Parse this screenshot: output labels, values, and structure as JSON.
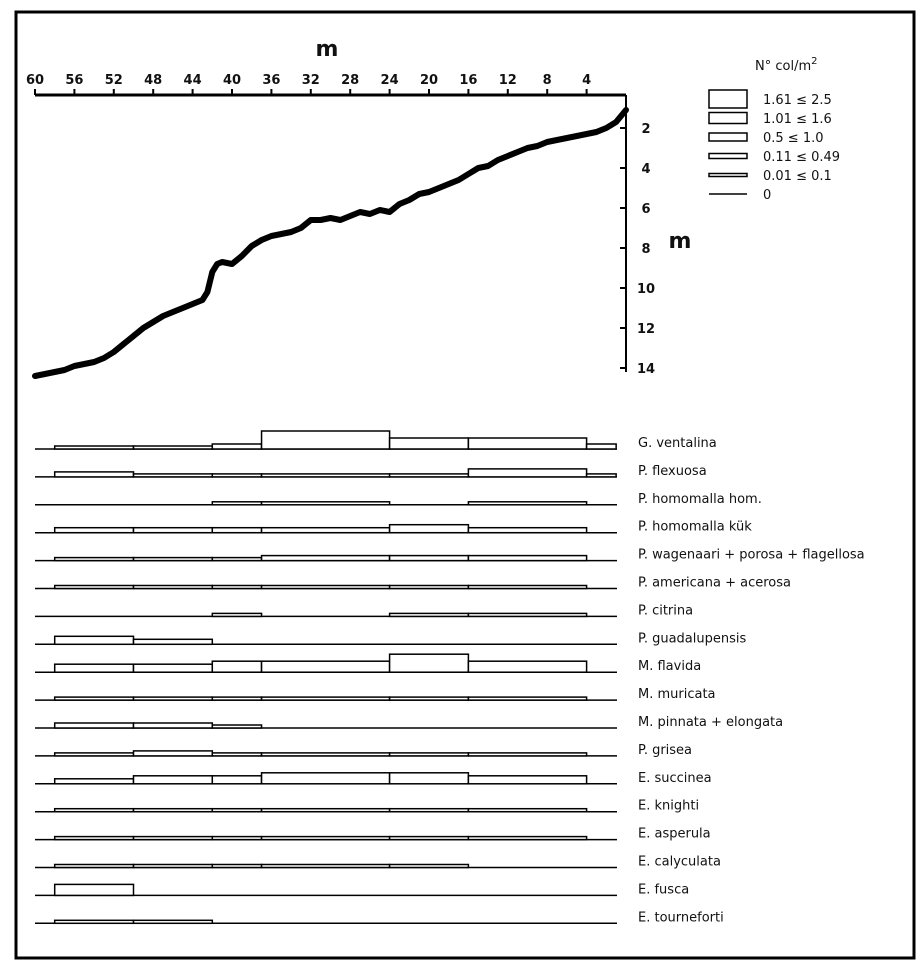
{
  "chart_data": [
    {
      "type": "line",
      "title": "",
      "xlabel": "m",
      "ylabel": "m",
      "xlim": [
        60,
        0
      ],
      "ylim": [
        0,
        14
      ],
      "x_ticks": [
        60,
        56,
        52,
        48,
        44,
        40,
        36,
        32,
        28,
        24,
        20,
        16,
        12,
        8,
        4
      ],
      "y_ticks": [
        2,
        4,
        6,
        8,
        10,
        12,
        14
      ],
      "series": [
        {
          "x": [
            60,
            59,
            58,
            57,
            56,
            55,
            54,
            53,
            52,
            51,
            50,
            49,
            48,
            47,
            46,
            45,
            44,
            43,
            42.5,
            42,
            41.5,
            41,
            40,
            39,
            38,
            37,
            36,
            35,
            34,
            33,
            32,
            31,
            30,
            29,
            28,
            27,
            26,
            25,
            24,
            23,
            22,
            21,
            20,
            19,
            18,
            17,
            16,
            15,
            14,
            13,
            12,
            11,
            10,
            9,
            8,
            7,
            6,
            5,
            4,
            3,
            2,
            1,
            0
          ],
          "y": [
            14.4,
            14.3,
            14.2,
            14.1,
            13.9,
            13.8,
            13.7,
            13.5,
            13.2,
            12.8,
            12.4,
            12.0,
            11.7,
            11.4,
            11.2,
            11.0,
            10.8,
            10.6,
            10.2,
            9.2,
            8.8,
            8.7,
            8.8,
            8.4,
            7.9,
            7.6,
            7.4,
            7.3,
            7.2,
            7.0,
            6.6,
            6.6,
            6.5,
            6.6,
            6.4,
            6.2,
            6.3,
            6.1,
            6.2,
            5.8,
            5.6,
            5.3,
            5.2,
            5.0,
            4.8,
            4.6,
            4.3,
            4.0,
            3.9,
            3.6,
            3.4,
            3.2,
            3.0,
            2.9,
            2.7,
            2.6,
            2.5,
            2.4,
            2.3,
            2.2,
            2.0,
            1.7,
            1.1
          ]
        }
      ]
    },
    {
      "type": "bar",
      "title": "",
      "legend_title": "N° col/m",
      "legend_title_sup": "2",
      "legend_placement": "top-right",
      "legend": [
        {
          "label": "1.61 ≤ 2.5",
          "level": 5
        },
        {
          "label": "1.01 ≤ 1.6",
          "level": 4
        },
        {
          "label": "0.5 ≤ 1.0",
          "level": 3
        },
        {
          "label": "0.11 ≤ 0.49",
          "level": 2
        },
        {
          "label": "0.01 ≤ 0.1",
          "level": 1
        },
        {
          "label": "0",
          "level": 0
        }
      ],
      "x_unit": "m",
      "xlim": [
        60,
        0
      ],
      "series": [
        {
          "name": "G. ventalina",
          "segments": [
            [
              58,
              50,
              1
            ],
            [
              50,
              42,
              1
            ],
            [
              42,
              37,
              2
            ],
            [
              37,
              24,
              5
            ],
            [
              24,
              16,
              4
            ],
            [
              16,
              4,
              4
            ],
            [
              4,
              1,
              2
            ]
          ]
        },
        {
          "name": "P. flexuosa",
          "segments": [
            [
              58,
              50,
              2
            ],
            [
              50,
              42,
              1
            ],
            [
              42,
              37,
              1
            ],
            [
              37,
              24,
              1
            ],
            [
              24,
              16,
              1
            ],
            [
              16,
              4,
              3
            ],
            [
              4,
              1,
              1
            ]
          ]
        },
        {
          "name": "P. homomalla hom.",
          "segments": [
            [
              42,
              37,
              1
            ],
            [
              37,
              24,
              1
            ],
            [
              16,
              4,
              1
            ]
          ]
        },
        {
          "name": "P. homomalla kük",
          "segments": [
            [
              58,
              50,
              2
            ],
            [
              50,
              42,
              2
            ],
            [
              42,
              37,
              2
            ],
            [
              37,
              24,
              2
            ],
            [
              24,
              16,
              3
            ],
            [
              16,
              4,
              2
            ]
          ]
        },
        {
          "name": "P. wagenaari + porosa + flagellosa",
          "segments": [
            [
              58,
              50,
              1
            ],
            [
              50,
              42,
              1
            ],
            [
              42,
              37,
              1
            ],
            [
              37,
              24,
              2
            ],
            [
              24,
              16,
              2
            ],
            [
              16,
              4,
              2
            ]
          ]
        },
        {
          "name": "P. americana + acerosa",
          "segments": [
            [
              58,
              50,
              1
            ],
            [
              50,
              42,
              1
            ],
            [
              42,
              37,
              1
            ],
            [
              37,
              24,
              1
            ],
            [
              24,
              16,
              1
            ],
            [
              16,
              4,
              1
            ]
          ]
        },
        {
          "name": "P. citrina",
          "segments": [
            [
              42,
              37,
              1
            ],
            [
              24,
              16,
              1
            ],
            [
              16,
              4,
              1
            ]
          ]
        },
        {
          "name": "P. guadalupensis",
          "segments": [
            [
              58,
              50,
              3
            ],
            [
              50,
              42,
              2
            ]
          ]
        },
        {
          "name": "M. flavida",
          "segments": [
            [
              58,
              50,
              3
            ],
            [
              50,
              42,
              3
            ],
            [
              42,
              37,
              4
            ],
            [
              37,
              24,
              4
            ],
            [
              24,
              16,
              5
            ],
            [
              16,
              4,
              4
            ]
          ]
        },
        {
          "name": "M. muricata",
          "segments": [
            [
              58,
              50,
              1
            ],
            [
              50,
              42,
              1
            ],
            [
              42,
              37,
              1
            ],
            [
              37,
              24,
              1
            ],
            [
              24,
              16,
              1
            ],
            [
              16,
              4,
              1
            ]
          ]
        },
        {
          "name": "M. pinnata + elongata",
          "segments": [
            [
              58,
              50,
              2
            ],
            [
              50,
              42,
              2
            ],
            [
              42,
              37,
              1
            ]
          ]
        },
        {
          "name": "P. grisea",
          "segments": [
            [
              58,
              50,
              1
            ],
            [
              50,
              42,
              2
            ],
            [
              42,
              37,
              1
            ],
            [
              37,
              24,
              1
            ],
            [
              24,
              16,
              1
            ],
            [
              16,
              4,
              1
            ]
          ]
        },
        {
          "name": "E. succinea",
          "segments": [
            [
              58,
              50,
              2
            ],
            [
              50,
              42,
              3
            ],
            [
              42,
              37,
              3
            ],
            [
              37,
              24,
              4
            ],
            [
              24,
              16,
              4
            ],
            [
              16,
              4,
              3
            ]
          ]
        },
        {
          "name": "E. knighti",
          "segments": [
            [
              58,
              50,
              1
            ],
            [
              50,
              42,
              1
            ],
            [
              42,
              37,
              1
            ],
            [
              37,
              24,
              1
            ],
            [
              24,
              16,
              1
            ],
            [
              16,
              4,
              1
            ]
          ]
        },
        {
          "name": "E. asperula",
          "segments": [
            [
              58,
              50,
              1
            ],
            [
              50,
              42,
              1
            ],
            [
              42,
              37,
              1
            ],
            [
              37,
              24,
              1
            ],
            [
              24,
              16,
              1
            ],
            [
              16,
              4,
              1
            ]
          ]
        },
        {
          "name": "E. calyculata",
          "segments": [
            [
              58,
              50,
              1
            ],
            [
              50,
              42,
              1
            ],
            [
              42,
              37,
              1
            ],
            [
              37,
              24,
              1
            ],
            [
              24,
              16,
              1
            ]
          ]
        },
        {
          "name": "E. fusca",
          "segments": [
            [
              58,
              50,
              4
            ]
          ]
        },
        {
          "name": "E. tourneforti",
          "segments": [
            [
              58,
              50,
              1
            ],
            [
              50,
              42,
              1
            ]
          ]
        }
      ]
    }
  ]
}
